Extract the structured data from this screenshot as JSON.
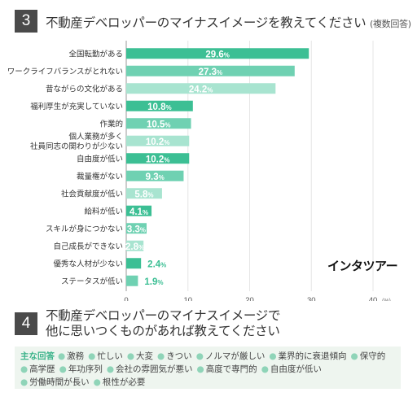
{
  "q3": {
    "number": "3",
    "title": "不動産デベロッパーのマイナスイメージを教えてください",
    "note": "(複数回答)"
  },
  "chart_data": {
    "type": "bar",
    "orientation": "horizontal",
    "categories": [
      [
        "全国転勤がある"
      ],
      [
        "ワークライフバランスがとれない"
      ],
      [
        "昔ながらの文化がある"
      ],
      [
        "福利厚生が充実していない"
      ],
      [
        "作業的"
      ],
      [
        "個人業務が多く",
        "社員同志の関わりが少ない"
      ],
      [
        "自由度が低い"
      ],
      [
        "裁量権がない"
      ],
      [
        "社会貢献度が低い"
      ],
      [
        "給料が低い"
      ],
      [
        "スキルが身につかない"
      ],
      [
        "自己成長ができない"
      ],
      [
        "優秀な人材が少ない"
      ],
      [
        "ステータスが低い"
      ]
    ],
    "values": [
      29.6,
      27.3,
      24.2,
      10.8,
      10.5,
      10.2,
      10.2,
      9.3,
      5.8,
      4.1,
      3.3,
      2.8,
      2.4,
      1.9
    ],
    "value_labels": [
      "29.6%",
      "27.3%",
      "24.2%",
      "10.8%",
      "10.5%",
      "10.2%",
      "10.2%",
      "9.3%",
      "5.8%",
      "4.1%",
      "3.3%",
      "2.8%",
      "2.4%",
      "1.9%"
    ],
    "bar_colors": [
      "#3cbf94",
      "#6fd1b2",
      "#a8e4d0",
      "#3cbf94",
      "#6fd1b2",
      "#a8e4d0",
      "#3cbf94",
      "#6fd1b2",
      "#a8e4d0",
      "#3cbf94",
      "#6fd1b2",
      "#a8e4d0",
      "#3cbf94",
      "#6fd1b2"
    ],
    "label_inside": [
      true,
      true,
      true,
      true,
      true,
      true,
      true,
      true,
      true,
      true,
      true,
      true,
      false,
      false
    ],
    "xlim": [
      0,
      40
    ],
    "xticks": [
      0,
      10,
      20,
      30,
      40
    ],
    "xunit": "(%)",
    "grid": true
  },
  "brand": "インタツアー",
  "q4": {
    "number": "4",
    "title_lines": [
      "不動産デベロッパーのマイナスイメージで",
      "他に思いつくものがあれば教えてください"
    ]
  },
  "answers": {
    "lead": "主な回答",
    "items": [
      "激務",
      "忙しい",
      "大変",
      "きつい",
      "ノルマが厳しい",
      "業界的に衰退傾向",
      "保守的",
      "高学歴",
      "年功序列",
      "会社の雰囲気が悪い",
      "高度で専門的",
      "自由度が低い",
      "労働時間が長い",
      "根性が必要"
    ]
  },
  "colors": {
    "accent": "#3cbf94",
    "label_text_outside": "#3cbf94",
    "header_box": "#4a4a4a",
    "answer_bg": "#eef5ef"
  }
}
